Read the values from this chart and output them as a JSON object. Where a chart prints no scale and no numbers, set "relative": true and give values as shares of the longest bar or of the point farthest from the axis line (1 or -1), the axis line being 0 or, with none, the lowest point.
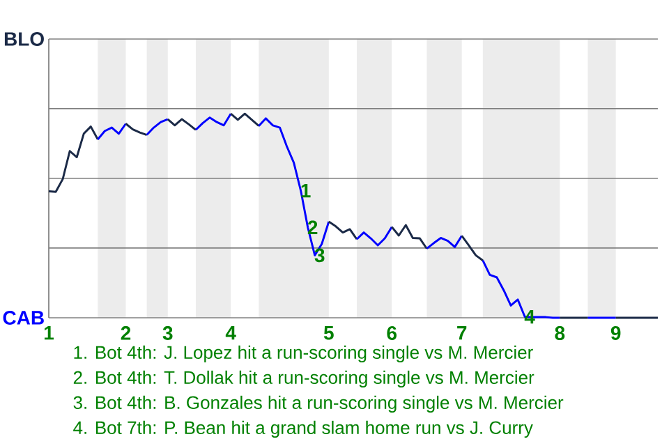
{
  "chart_data": {
    "type": "line",
    "relative": true,
    "categories": [
      "1",
      null,
      null,
      null,
      null,
      null,
      null,
      null,
      null,
      null,
      null,
      "2",
      null,
      null,
      null,
      null,
      null,
      "3",
      null,
      null,
      null,
      null,
      null,
      null,
      null,
      null,
      "4",
      null,
      null,
      null,
      null,
      null,
      null,
      null,
      null,
      null,
      null,
      null,
      null,
      null,
      "5",
      null,
      null,
      null,
      null,
      null,
      null,
      null,
      null,
      "6",
      null,
      null,
      null,
      null,
      null,
      null,
      null,
      null,
      null,
      "7",
      null,
      null,
      null,
      null,
      null,
      null,
      null,
      null,
      null,
      null,
      null,
      null,
      null,
      "8",
      null,
      null,
      null,
      null,
      null,
      null,
      null,
      "9",
      null,
      null,
      null,
      null,
      null,
      null
    ],
    "ref_lines": [
      {
        "axis": "y",
        "value": 0,
        "label": "CAB",
        "color": "#808080"
      },
      {
        "axis": "y",
        "value": 0.342,
        "label": null,
        "color": "#808080"
      },
      {
        "axis": "y",
        "value": 0.683,
        "label": null,
        "color": "#808080"
      },
      {
        "axis": "y",
        "value": 1.025,
        "label": null,
        "color": "#808080"
      },
      {
        "axis": "y",
        "value": 1.366,
        "label": "BLO",
        "color": "#808080"
      }
    ],
    "series": [
      {
        "color": "#1b2a47",
        "values": [
          0.62,
          0.617,
          0.68,
          0.817,
          0.787,
          0.902,
          0.937,
          0.874,
          null,
          null,
          null,
          null,
          null,
          null,
          null,
          null,
          null,
          null,
          null,
          null,
          null,
          null,
          null,
          null,
          null,
          null,
          null,
          null,
          null,
          null,
          null,
          null,
          null,
          null,
          null,
          null,
          null,
          null,
          null,
          null,
          null,
          null,
          null,
          null,
          null,
          null,
          null,
          null,
          null,
          null,
          null,
          null,
          null,
          null,
          null,
          null,
          null,
          null,
          null,
          null,
          null,
          null,
          null,
          null,
          null,
          null,
          null,
          null,
          null,
          null,
          null,
          null,
          null,
          null,
          null,
          null,
          null,
          null,
          null,
          null,
          null,
          null,
          null,
          null,
          null,
          null,
          null,
          null
        ]
      },
      {
        "color": "#0000ff",
        "values": [
          null,
          null,
          null,
          null,
          null,
          null,
          null,
          0.874,
          0.915,
          0.932,
          0.902,
          0.951,
          null,
          null,
          null,
          null,
          null,
          null,
          null,
          null,
          null,
          null,
          null,
          null,
          null,
          null,
          null,
          null,
          null,
          null,
          null,
          null,
          null,
          null,
          null,
          null,
          null,
          null,
          null,
          null,
          null,
          null,
          null,
          null,
          null,
          null,
          null,
          null,
          null,
          null,
          null,
          null,
          null,
          null,
          null,
          null,
          null,
          null,
          null,
          null,
          null,
          null,
          null,
          null,
          null,
          null,
          null,
          null,
          null,
          null,
          null,
          null,
          null,
          null,
          null,
          null,
          null,
          null,
          null,
          null,
          null,
          null,
          null,
          null,
          null,
          null,
          null,
          null
        ]
      },
      {
        "color": "#1b2a47",
        "values": [
          null,
          null,
          null,
          null,
          null,
          null,
          null,
          null,
          null,
          null,
          null,
          0.951,
          0.923,
          0.908,
          0.896,
          null,
          null,
          null,
          null,
          null,
          null,
          null,
          null,
          null,
          null,
          null,
          null,
          null,
          null,
          null,
          null,
          null,
          null,
          null,
          null,
          null,
          null,
          null,
          null,
          null,
          null,
          null,
          null,
          null,
          null,
          null,
          null,
          null,
          null,
          null,
          null,
          null,
          null,
          null,
          null,
          null,
          null,
          null,
          null,
          null,
          null,
          null,
          null,
          null,
          null,
          null,
          null,
          null,
          null,
          null,
          null,
          null,
          null,
          null,
          null,
          null,
          null,
          null,
          null,
          null,
          null,
          null,
          null,
          null,
          null,
          null,
          null,
          null
        ]
      },
      {
        "color": "#0000ff",
        "values": [
          null,
          null,
          null,
          null,
          null,
          null,
          null,
          null,
          null,
          null,
          null,
          null,
          null,
          null,
          0.896,
          0.932,
          0.959,
          0.973,
          null,
          null,
          null,
          null,
          null,
          null,
          null,
          null,
          null,
          null,
          null,
          null,
          null,
          null,
          null,
          null,
          null,
          null,
          null,
          null,
          null,
          null,
          null,
          null,
          null,
          null,
          null,
          null,
          null,
          null,
          null,
          null,
          null,
          null,
          null,
          null,
          null,
          null,
          null,
          null,
          null,
          null,
          null,
          null,
          null,
          null,
          null,
          null,
          null,
          null,
          null,
          null,
          null,
          null,
          null,
          null,
          null,
          null,
          null,
          null,
          null,
          null,
          null,
          null,
          null,
          null,
          null,
          null,
          null,
          null
        ]
      },
      {
        "color": "#1b2a47",
        "values": [
          null,
          null,
          null,
          null,
          null,
          null,
          null,
          null,
          null,
          null,
          null,
          null,
          null,
          null,
          null,
          null,
          null,
          0.973,
          0.943,
          0.973,
          0.948,
          0.921,
          null,
          null,
          null,
          null,
          null,
          null,
          null,
          null,
          null,
          null,
          null,
          null,
          null,
          null,
          null,
          null,
          null,
          null,
          null,
          null,
          null,
          null,
          null,
          null,
          null,
          null,
          null,
          null,
          null,
          null,
          null,
          null,
          null,
          null,
          null,
          null,
          null,
          null,
          null,
          null,
          null,
          null,
          null,
          null,
          null,
          null,
          null,
          null,
          null,
          null,
          null,
          null,
          null,
          null,
          null,
          null,
          null,
          null,
          null,
          null,
          null,
          null,
          null,
          null,
          null,
          null
        ]
      },
      {
        "color": "#0000ff",
        "values": [
          null,
          null,
          null,
          null,
          null,
          null,
          null,
          null,
          null,
          null,
          null,
          null,
          null,
          null,
          null,
          null,
          null,
          null,
          null,
          null,
          null,
          0.921,
          0.954,
          0.981,
          0.959,
          0.943,
          1,
          null,
          null,
          null,
          null,
          null,
          null,
          null,
          null,
          null,
          null,
          null,
          null,
          null,
          null,
          null,
          null,
          null,
          null,
          null,
          null,
          null,
          null,
          null,
          null,
          null,
          null,
          null,
          null,
          null,
          null,
          null,
          null,
          null,
          null,
          null,
          null,
          null,
          null,
          null,
          null,
          null,
          null,
          null,
          null,
          null,
          null,
          null,
          null,
          null,
          null,
          null,
          null,
          null,
          null,
          null,
          null,
          null,
          null,
          null,
          null,
          null
        ]
      },
      {
        "color": "#1b2a47",
        "values": [
          null,
          null,
          null,
          null,
          null,
          null,
          null,
          null,
          null,
          null,
          null,
          null,
          null,
          null,
          null,
          null,
          null,
          null,
          null,
          null,
          null,
          null,
          null,
          null,
          null,
          null,
          1,
          0.97,
          1,
          0.97,
          0.94,
          null,
          null,
          null,
          null,
          null,
          null,
          null,
          null,
          null,
          null,
          null,
          null,
          null,
          null,
          null,
          null,
          null,
          null,
          null,
          null,
          null,
          null,
          null,
          null,
          null,
          null,
          null,
          null,
          null,
          null,
          null,
          null,
          null,
          null,
          null,
          null,
          null,
          null,
          null,
          null,
          null,
          null,
          null,
          null,
          null,
          null,
          null,
          null,
          null,
          null,
          null,
          null,
          null,
          null,
          null,
          null,
          null
        ]
      },
      {
        "color": "#0000ff",
        "values": [
          null,
          null,
          null,
          null,
          null,
          null,
          null,
          null,
          null,
          null,
          null,
          null,
          null,
          null,
          null,
          null,
          null,
          null,
          null,
          null,
          null,
          null,
          null,
          null,
          null,
          null,
          null,
          null,
          null,
          null,
          0.94,
          0.977,
          0.943,
          0.932,
          0.84,
          0.76,
          0.623,
          0.443,
          0.306,
          0.362,
          0.471,
          null,
          null,
          null,
          null,
          null,
          null,
          null,
          null,
          null,
          null,
          null,
          null,
          null,
          null,
          null,
          null,
          null,
          null,
          null,
          null,
          null,
          null,
          null,
          null,
          null,
          null,
          null,
          null,
          null,
          null,
          null,
          null,
          null,
          null,
          null,
          null,
          null,
          null,
          null,
          null,
          null,
          null,
          null,
          null,
          null,
          null,
          null
        ]
      },
      {
        "color": "#1b2a47",
        "values": [
          null,
          null,
          null,
          null,
          null,
          null,
          null,
          null,
          null,
          null,
          null,
          null,
          null,
          null,
          null,
          null,
          null,
          null,
          null,
          null,
          null,
          null,
          null,
          null,
          null,
          null,
          null,
          null,
          null,
          null,
          null,
          null,
          null,
          null,
          null,
          null,
          null,
          null,
          null,
          null,
          0.471,
          0.448,
          0.418,
          0.434,
          0.385,
          null,
          null,
          null,
          null,
          null,
          null,
          null,
          null,
          null,
          null,
          null,
          null,
          null,
          null,
          null,
          null,
          null,
          null,
          null,
          null,
          null,
          null,
          null,
          null,
          null,
          null,
          null,
          null,
          null,
          null,
          null,
          null,
          null,
          null,
          null,
          null,
          null,
          null,
          null,
          null,
          null,
          null,
          null
        ]
      },
      {
        "color": "#0000ff",
        "values": [
          null,
          null,
          null,
          null,
          null,
          null,
          null,
          null,
          null,
          null,
          null,
          null,
          null,
          null,
          null,
          null,
          null,
          null,
          null,
          null,
          null,
          null,
          null,
          null,
          null,
          null,
          null,
          null,
          null,
          null,
          null,
          null,
          null,
          null,
          null,
          null,
          null,
          null,
          null,
          null,
          null,
          null,
          null,
          null,
          0.385,
          0.418,
          0.389,
          0.355,
          0.389,
          0.445,
          null,
          null,
          null,
          null,
          null,
          null,
          null,
          null,
          null,
          null,
          null,
          null,
          null,
          null,
          null,
          null,
          null,
          null,
          null,
          null,
          null,
          null,
          null,
          null,
          null,
          null,
          null,
          null,
          null,
          null,
          null,
          null,
          null,
          null,
          null,
          null,
          null,
          null
        ]
      },
      {
        "color": "#1b2a47",
        "values": [
          null,
          null,
          null,
          null,
          null,
          null,
          null,
          null,
          null,
          null,
          null,
          null,
          null,
          null,
          null,
          null,
          null,
          null,
          null,
          null,
          null,
          null,
          null,
          null,
          null,
          null,
          null,
          null,
          null,
          null,
          null,
          null,
          null,
          null,
          null,
          null,
          null,
          null,
          null,
          null,
          null,
          null,
          null,
          null,
          null,
          null,
          null,
          null,
          null,
          0.445,
          0.403,
          0.454,
          0.391,
          0.389,
          0.339,
          null,
          null,
          null,
          null,
          null,
          null,
          null,
          null,
          null,
          null,
          null,
          null,
          null,
          null,
          null,
          null,
          null,
          null,
          null,
          null,
          null,
          null,
          null,
          null,
          null,
          null,
          null,
          null,
          null,
          null,
          null,
          null,
          null
        ]
      },
      {
        "color": "#0000ff",
        "values": [
          null,
          null,
          null,
          null,
          null,
          null,
          null,
          null,
          null,
          null,
          null,
          null,
          null,
          null,
          null,
          null,
          null,
          null,
          null,
          null,
          null,
          null,
          null,
          null,
          null,
          null,
          null,
          null,
          null,
          null,
          null,
          null,
          null,
          null,
          null,
          null,
          null,
          null,
          null,
          null,
          null,
          null,
          null,
          null,
          null,
          null,
          null,
          null,
          null,
          null,
          null,
          null,
          null,
          null,
          0.339,
          0.366,
          0.391,
          0.377,
          0.347,
          0.402,
          null,
          null,
          null,
          null,
          null,
          null,
          null,
          null,
          null,
          null,
          null,
          null,
          null,
          null,
          null,
          null,
          null,
          null,
          null,
          null,
          null,
          null,
          null,
          null,
          null,
          null,
          null,
          null
        ]
      },
      {
        "color": "#1b2a47",
        "values": [
          null,
          null,
          null,
          null,
          null,
          null,
          null,
          null,
          null,
          null,
          null,
          null,
          null,
          null,
          null,
          null,
          null,
          null,
          null,
          null,
          null,
          null,
          null,
          null,
          null,
          null,
          null,
          null,
          null,
          null,
          null,
          null,
          null,
          null,
          null,
          null,
          null,
          null,
          null,
          null,
          null,
          null,
          null,
          null,
          null,
          null,
          null,
          null,
          null,
          null,
          null,
          null,
          null,
          null,
          null,
          null,
          null,
          null,
          null,
          0.402,
          0.355,
          0.306,
          0.281,
          null,
          null,
          null,
          null,
          null,
          null,
          null,
          null,
          null,
          null,
          null,
          null,
          null,
          null,
          null,
          null,
          null,
          null,
          null,
          null,
          null,
          null,
          null,
          null,
          null
        ]
      },
      {
        "color": "#0000ff",
        "values": [
          null,
          null,
          null,
          null,
          null,
          null,
          null,
          null,
          null,
          null,
          null,
          null,
          null,
          null,
          null,
          null,
          null,
          null,
          null,
          null,
          null,
          null,
          null,
          null,
          null,
          null,
          null,
          null,
          null,
          null,
          null,
          null,
          null,
          null,
          null,
          null,
          null,
          null,
          null,
          null,
          null,
          null,
          null,
          null,
          null,
          null,
          null,
          null,
          null,
          null,
          null,
          null,
          null,
          null,
          null,
          null,
          null,
          null,
          null,
          null,
          null,
          null,
          0.281,
          0.21,
          0.198,
          0.134,
          0.06,
          0.089,
          0.005,
          0.003,
          0.003,
          0.003,
          0,
          0,
          null,
          null,
          null,
          null,
          null,
          null,
          null,
          null,
          null,
          null,
          null,
          null,
          null,
          null
        ]
      },
      {
        "color": "#1b2a47",
        "values": [
          null,
          null,
          null,
          null,
          null,
          null,
          null,
          null,
          null,
          null,
          null,
          null,
          null,
          null,
          null,
          null,
          null,
          null,
          null,
          null,
          null,
          null,
          null,
          null,
          null,
          null,
          null,
          null,
          null,
          null,
          null,
          null,
          null,
          null,
          null,
          null,
          null,
          null,
          null,
          null,
          null,
          null,
          null,
          null,
          null,
          null,
          null,
          null,
          null,
          null,
          null,
          null,
          null,
          null,
          null,
          null,
          null,
          null,
          null,
          null,
          null,
          null,
          null,
          null,
          null,
          null,
          null,
          null,
          null,
          null,
          null,
          null,
          null,
          0,
          0,
          0,
          0,
          0,
          null,
          null,
          null,
          null,
          null,
          null,
          null,
          null,
          null,
          null
        ]
      },
      {
        "color": "#0000ff",
        "values": [
          null,
          null,
          null,
          null,
          null,
          null,
          null,
          null,
          null,
          null,
          null,
          null,
          null,
          null,
          null,
          null,
          null,
          null,
          null,
          null,
          null,
          null,
          null,
          null,
          null,
          null,
          null,
          null,
          null,
          null,
          null,
          null,
          null,
          null,
          null,
          null,
          null,
          null,
          null,
          null,
          null,
          null,
          null,
          null,
          null,
          null,
          null,
          null,
          null,
          null,
          null,
          null,
          null,
          null,
          null,
          null,
          null,
          null,
          null,
          null,
          null,
          null,
          null,
          null,
          null,
          null,
          null,
          null,
          null,
          null,
          null,
          null,
          null,
          null,
          null,
          null,
          null,
          0,
          0,
          0,
          0,
          0,
          null,
          null,
          null,
          null,
          null,
          null
        ]
      },
      {
        "color": "#1b2a47",
        "values": [
          null,
          null,
          null,
          null,
          null,
          null,
          null,
          null,
          null,
          null,
          null,
          null,
          null,
          null,
          null,
          null,
          null,
          null,
          null,
          null,
          null,
          null,
          null,
          null,
          null,
          null,
          null,
          null,
          null,
          null,
          null,
          null,
          null,
          null,
          null,
          null,
          null,
          null,
          null,
          null,
          null,
          null,
          null,
          null,
          null,
          null,
          null,
          null,
          null,
          null,
          null,
          null,
          null,
          null,
          null,
          null,
          null,
          null,
          null,
          null,
          null,
          null,
          null,
          null,
          null,
          null,
          null,
          null,
          null,
          null,
          null,
          null,
          null,
          null,
          null,
          null,
          null,
          null,
          null,
          null,
          null,
          0,
          0,
          0,
          0,
          0,
          0,
          0
        ]
      }
    ],
    "annotations": [
      {
        "text": "1",
        "y": 0.623
      },
      {
        "text": "2",
        "y": 0.443
      },
      {
        "text": "3",
        "y": 0.306
      },
      {
        "text": "4",
        "y": 0.005
      },
      "1. Bot 4th: J. Lopez hit a run-scoring single vs M. Mercier",
      "2. Bot 4th: T. Dollak hit a run-scoring single vs M. Mercier",
      "3. Bot 4th: B. Gonzales hit a run-scoring single vs M. Mercier",
      "4. Bot 7th: P. Bean hit a grand slam home run vs J. Curry"
    ]
  }
}
